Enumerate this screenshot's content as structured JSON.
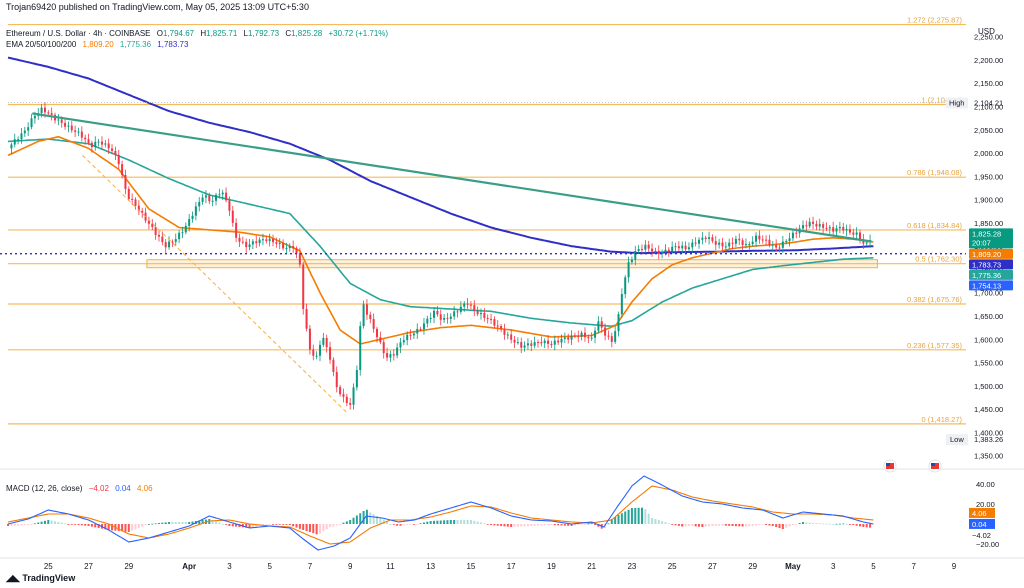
{
  "header": "Trojan69420 published on TradingView.com, May 05, 2025 13:09 UTC+5:30",
  "legend": {
    "symbol": "Ethereum / U.S. Dollar · 4h · COINBASE",
    "o_label": "O",
    "o": "1,794.67",
    "h_label": "H",
    "h": "1,825.71",
    "l_label": "L",
    "l": "1,792.73",
    "c_label": "C",
    "c": "1,825.28",
    "change": "+30.72 (+1.71%)",
    "ema_label": "EMA 20/50/100/200",
    "ema20": "1,809.20",
    "ema50": "1,775.36",
    "ema100": "1,783.73"
  },
  "macd_legend": {
    "label": "MACD (12, 26, close)",
    "hist": "−4.02",
    "macd": "0.04",
    "signal": "4.06"
  },
  "brand": "TradingView",
  "colors": {
    "up": "#089981",
    "down": "#f23645",
    "fib": "#f5b041",
    "ema20": "#f57c00",
    "ema50": "#26a69a",
    "ema200": "#2f2fc8",
    "trend": "#3a9e86",
    "macd": "#2962ff",
    "signal": "#f57c00"
  },
  "chart_data": {
    "type": "candlestick",
    "currency_label": "USD",
    "ylim": [
      1330,
      2290
    ],
    "y_ticks": [
      1350,
      1400,
      1450,
      1500,
      1550,
      1600,
      1650,
      1700,
      1750,
      1800,
      1850,
      1900,
      1950,
      2000,
      2050,
      2100,
      2150,
      2200,
      2250
    ],
    "y_tick_labels": [
      "1,350.00",
      "1,400.00",
      "1,450.00",
      "1,500.00",
      "1,550.00",
      "1,600.00",
      "1,650.00",
      "1,700.00",
      "1,750.00",
      "1,800.00",
      "1,850.00",
      "1,900.00",
      "1,950.00",
      "2,000.00",
      "2,050.00",
      "2,100.00",
      "2,150.00",
      "2,200.00",
      "2,250.00"
    ],
    "x_ticks": [
      {
        "day": 25,
        "label": "25"
      },
      {
        "day": 27,
        "label": "27"
      },
      {
        "day": 29,
        "label": "29"
      },
      {
        "day": 32,
        "label": "Apr"
      },
      {
        "day": 34,
        "label": "3"
      },
      {
        "day": 36,
        "label": "5"
      },
      {
        "day": 38,
        "label": "7"
      },
      {
        "day": 40,
        "label": "9"
      },
      {
        "day": 42,
        "label": "11"
      },
      {
        "day": 44,
        "label": "13"
      },
      {
        "day": 46,
        "label": "15"
      },
      {
        "day": 48,
        "label": "17"
      },
      {
        "day": 50,
        "label": "19"
      },
      {
        "day": 52,
        "label": "21"
      },
      {
        "day": 54,
        "label": "23"
      },
      {
        "day": 56,
        "label": "25"
      },
      {
        "day": 58,
        "label": "27"
      },
      {
        "day": 60,
        "label": "29"
      },
      {
        "day": 62,
        "label": "May"
      },
      {
        "day": 64,
        "label": "3"
      },
      {
        "day": 66,
        "label": "5"
      },
      {
        "day": 68,
        "label": "7"
      },
      {
        "day": 70,
        "label": "9"
      }
    ],
    "price_keyframes": [
      [
        23.0,
        2010
      ],
      [
        23.4,
        2030
      ],
      [
        23.8,
        2045
      ],
      [
        24.3,
        2080
      ],
      [
        24.7,
        2095
      ],
      [
        25.3,
        2075
      ],
      [
        26.0,
        2055
      ],
      [
        26.6,
        2040
      ],
      [
        27.1,
        2015
      ],
      [
        27.5,
        2025
      ],
      [
        28.1,
        2010
      ],
      [
        28.5,
        1980
      ],
      [
        28.9,
        1910
      ],
      [
        29.3,
        1890
      ],
      [
        29.8,
        1860
      ],
      [
        30.3,
        1830
      ],
      [
        30.8,
        1800
      ],
      [
        31.3,
        1815
      ],
      [
        31.8,
        1840
      ],
      [
        32.3,
        1880
      ],
      [
        32.7,
        1910
      ],
      [
        33.1,
        1895
      ],
      [
        33.6,
        1920
      ],
      [
        34.0,
        1880
      ],
      [
        34.3,
        1820
      ],
      [
        34.8,
        1800
      ],
      [
        35.3,
        1810
      ],
      [
        35.8,
        1815
      ],
      [
        36.3,
        1808
      ],
      [
        36.8,
        1795
      ],
      [
        37.2,
        1800
      ],
      [
        37.5,
        1760
      ],
      [
        37.7,
        1650
      ],
      [
        38.0,
        1580
      ],
      [
        38.3,
        1555
      ],
      [
        38.6,
        1610
      ],
      [
        39.0,
        1560
      ],
      [
        39.3,
        1500
      ],
      [
        39.7,
        1470
      ],
      [
        40.0,
        1460
      ],
      [
        40.3,
        1520
      ],
      [
        40.6,
        1680
      ],
      [
        41.0,
        1640
      ],
      [
        41.4,
        1600
      ],
      [
        41.8,
        1560
      ],
      [
        42.2,
        1570
      ],
      [
        42.6,
        1600
      ],
      [
        43.0,
        1610
      ],
      [
        43.4,
        1620
      ],
      [
        43.8,
        1640
      ],
      [
        44.2,
        1660
      ],
      [
        44.6,
        1640
      ],
      [
        45.0,
        1650
      ],
      [
        45.4,
        1665
      ],
      [
        45.8,
        1680
      ],
      [
        46.2,
        1660
      ],
      [
        46.6,
        1650
      ],
      [
        47.0,
        1640
      ],
      [
        47.5,
        1620
      ],
      [
        48.0,
        1600
      ],
      [
        48.5,
        1585
      ],
      [
        49.0,
        1590
      ],
      [
        49.5,
        1595
      ],
      [
        50.0,
        1590
      ],
      [
        50.5,
        1600
      ],
      [
        51.0,
        1605
      ],
      [
        51.5,
        1610
      ],
      [
        52.0,
        1600
      ],
      [
        52.3,
        1640
      ],
      [
        52.6,
        1615
      ],
      [
        53.0,
        1595
      ],
      [
        53.3,
        1640
      ],
      [
        53.5,
        1700
      ],
      [
        53.8,
        1760
      ],
      [
        54.2,
        1790
      ],
      [
        54.7,
        1800
      ],
      [
        55.2,
        1785
      ],
      [
        55.7,
        1790
      ],
      [
        56.2,
        1800
      ],
      [
        56.7,
        1795
      ],
      [
        57.2,
        1810
      ],
      [
        57.7,
        1820
      ],
      [
        58.2,
        1805
      ],
      [
        58.7,
        1800
      ],
      [
        59.2,
        1815
      ],
      [
        59.7,
        1800
      ],
      [
        60.2,
        1820
      ],
      [
        60.7,
        1810
      ],
      [
        61.2,
        1795
      ],
      [
        61.6,
        1810
      ],
      [
        62.0,
        1825
      ],
      [
        62.4,
        1840
      ],
      [
        62.8,
        1850
      ],
      [
        63.2,
        1845
      ],
      [
        63.6,
        1840
      ],
      [
        64.0,
        1835
      ],
      [
        64.4,
        1840
      ],
      [
        64.8,
        1830
      ],
      [
        65.2,
        1825
      ],
      [
        65.6,
        1800
      ],
      [
        65.95,
        1825
      ]
    ],
    "ema20_keyframes": [
      [
        23,
        1995
      ],
      [
        24.5,
        2025
      ],
      [
        25.5,
        2035
      ],
      [
        27,
        2010
      ],
      [
        28.5,
        1965
      ],
      [
        30,
        1880
      ],
      [
        31.5,
        1840
      ],
      [
        33,
        1835
      ],
      [
        34.5,
        1830
      ],
      [
        36,
        1820
      ],
      [
        37.5,
        1790
      ],
      [
        38.5,
        1700
      ],
      [
        39.5,
        1620
      ],
      [
        40.5,
        1590
      ],
      [
        41.5,
        1600
      ],
      [
        43,
        1615
      ],
      [
        44.5,
        1625
      ],
      [
        46,
        1630
      ],
      [
        48,
        1620
      ],
      [
        50,
        1605
      ],
      [
        52,
        1608
      ],
      [
        53.2,
        1630
      ],
      [
        54,
        1680
      ],
      [
        55,
        1730
      ],
      [
        56,
        1760
      ],
      [
        57,
        1775
      ],
      [
        58,
        1785
      ],
      [
        59,
        1795
      ],
      [
        60,
        1800
      ],
      [
        61,
        1803
      ],
      [
        62,
        1808
      ],
      [
        63,
        1815
      ],
      [
        64,
        1818
      ],
      [
        65,
        1815
      ],
      [
        66,
        1809
      ]
    ],
    "ema50_keyframes": [
      [
        23,
        2025
      ],
      [
        25,
        2030
      ],
      [
        27,
        2020
      ],
      [
        29,
        1985
      ],
      [
        31,
        1945
      ],
      [
        33,
        1910
      ],
      [
        35,
        1890
      ],
      [
        37,
        1870
      ],
      [
        38.5,
        1800
      ],
      [
        40,
        1720
      ],
      [
        41.5,
        1685
      ],
      [
        43,
        1670
      ],
      [
        45,
        1665
      ],
      [
        47,
        1660
      ],
      [
        49,
        1645
      ],
      [
        51,
        1635
      ],
      [
        53,
        1628
      ],
      [
        54,
        1640
      ],
      [
        55.5,
        1680
      ],
      [
        57,
        1710
      ],
      [
        58.5,
        1730
      ],
      [
        60,
        1750
      ],
      [
        61.5,
        1758
      ],
      [
        63,
        1765
      ],
      [
        64.5,
        1772
      ],
      [
        66,
        1775
      ]
    ],
    "ema200_keyframes": [
      [
        23,
        2205
      ],
      [
        25,
        2185
      ],
      [
        27,
        2160
      ],
      [
        29,
        2125
      ],
      [
        31,
        2090
      ],
      [
        33,
        2065
      ],
      [
        35,
        2045
      ],
      [
        37,
        2020
      ],
      [
        39,
        1985
      ],
      [
        41,
        1940
      ],
      [
        43,
        1905
      ],
      [
        45,
        1870
      ],
      [
        47,
        1840
      ],
      [
        49,
        1818
      ],
      [
        51,
        1800
      ],
      [
        53,
        1788
      ],
      [
        54.5,
        1785
      ],
      [
        56,
        1787
      ],
      [
        58,
        1788
      ],
      [
        60,
        1790
      ],
      [
        62,
        1791
      ],
      [
        64,
        1795
      ],
      [
        66,
        1800
      ]
    ],
    "trendline": [
      [
        24.2,
        2085
      ],
      [
        65.9,
        1810
      ]
    ],
    "dashed_line": [
      [
        26.7,
        1995
      ],
      [
        39.9,
        1440
      ]
    ],
    "fib_levels": [
      {
        "value": 2275.87,
        "label": "1.272 (2,275.87)"
      },
      {
        "value": 2104.21,
        "label": "1 (2,104.21)"
      },
      {
        "value": 1948.08,
        "label": "0.786 (1,948.08)"
      },
      {
        "value": 1834.84,
        "label": "0.618 (1,834.84)"
      },
      {
        "value": 1762.3,
        "label": "0.5 (1,762.30)"
      },
      {
        "value": 1675.76,
        "label": "0.382 (1,675.76)"
      },
      {
        "value": 1577.35,
        "label": "0.236 (1,577.35)"
      },
      {
        "value": 1418.27,
        "label": "0 (1,418.27)"
      }
    ],
    "high": {
      "label": "High",
      "value": "2,104.21"
    },
    "low": {
      "label": "Low",
      "value": "1,383.26"
    },
    "price_tags": [
      {
        "text": "1,825.28",
        "sub": "20:07",
        "bg": "#089981",
        "value": 1825.28
      },
      {
        "text": "1,809.20",
        "bg": "#f57c00",
        "value": 1809.2
      },
      {
        "text": "1,783.73",
        "bg": "#2f2fc8",
        "value": 1783.73
      },
      {
        "text": "1,775.36",
        "bg": "#26a69a",
        "value": 1775.36
      },
      {
        "text": "1,754.13",
        "bg": "#2962ff",
        "value": 1754.13
      }
    ],
    "macd": {
      "ylim": [
        -28,
        50
      ],
      "y_ticks": [
        40,
        20,
        -20
      ],
      "y_tick_labels": [
        "40.00",
        "20.00",
        "−20.00"
      ],
      "macd_keyframes": [
        [
          23,
          0
        ],
        [
          24,
          5
        ],
        [
          25,
          14
        ],
        [
          26,
          10
        ],
        [
          27,
          4
        ],
        [
          28,
          -6
        ],
        [
          29,
          -18
        ],
        [
          30,
          -14
        ],
        [
          31,
          -8
        ],
        [
          32,
          -2
        ],
        [
          33,
          8
        ],
        [
          34,
          2
        ],
        [
          35,
          -4
        ],
        [
          36,
          -2
        ],
        [
          37,
          -4
        ],
        [
          37.6,
          -14
        ],
        [
          38.4,
          -26
        ],
        [
          39.2,
          -22
        ],
        [
          40,
          -14
        ],
        [
          40.8,
          8
        ],
        [
          41.6,
          6
        ],
        [
          42.4,
          2
        ],
        [
          43.2,
          4
        ],
        [
          44,
          10
        ],
        [
          45,
          16
        ],
        [
          46,
          22
        ],
        [
          47,
          16
        ],
        [
          48,
          8
        ],
        [
          49,
          4
        ],
        [
          50,
          3
        ],
        [
          51,
          0
        ],
        [
          52,
          2
        ],
        [
          52.6,
          -3
        ],
        [
          53.3,
          18
        ],
        [
          54,
          38
        ],
        [
          54.6,
          48
        ],
        [
          55.4,
          40
        ],
        [
          56.5,
          28
        ],
        [
          57.5,
          22
        ],
        [
          58.5,
          20
        ],
        [
          59.5,
          16
        ],
        [
          60.5,
          14
        ],
        [
          61.5,
          6
        ],
        [
          62.5,
          12
        ],
        [
          63.5,
          10
        ],
        [
          64.5,
          8
        ],
        [
          65.5,
          2
        ],
        [
          66,
          0
        ]
      ],
      "signal_keyframes": [
        [
          23,
          2
        ],
        [
          24,
          6
        ],
        [
          25,
          10
        ],
        [
          26,
          10
        ],
        [
          27,
          6
        ],
        [
          28,
          0
        ],
        [
          29,
          -10
        ],
        [
          30,
          -14
        ],
        [
          31,
          -10
        ],
        [
          32,
          -4
        ],
        [
          33,
          3
        ],
        [
          34,
          4
        ],
        [
          35,
          0
        ],
        [
          36,
          -2
        ],
        [
          37,
          -3
        ],
        [
          38,
          -12
        ],
        [
          39,
          -20
        ],
        [
          40,
          -18
        ],
        [
          41,
          -4
        ],
        [
          42,
          4
        ],
        [
          43,
          4
        ],
        [
          44,
          7
        ],
        [
          45,
          12
        ],
        [
          46,
          18
        ],
        [
          47,
          17
        ],
        [
          48,
          11
        ],
        [
          49,
          6
        ],
        [
          50,
          4
        ],
        [
          51,
          2
        ],
        [
          52,
          1
        ],
        [
          53,
          4
        ],
        [
          54,
          22
        ],
        [
          55,
          38
        ],
        [
          56,
          34
        ],
        [
          57,
          27
        ],
        [
          58,
          23
        ],
        [
          59,
          20
        ],
        [
          60,
          17
        ],
        [
          61,
          12
        ],
        [
          62,
          10
        ],
        [
          63,
          10
        ],
        [
          64,
          9
        ],
        [
          65,
          6
        ],
        [
          66,
          4
        ]
      ]
    }
  }
}
